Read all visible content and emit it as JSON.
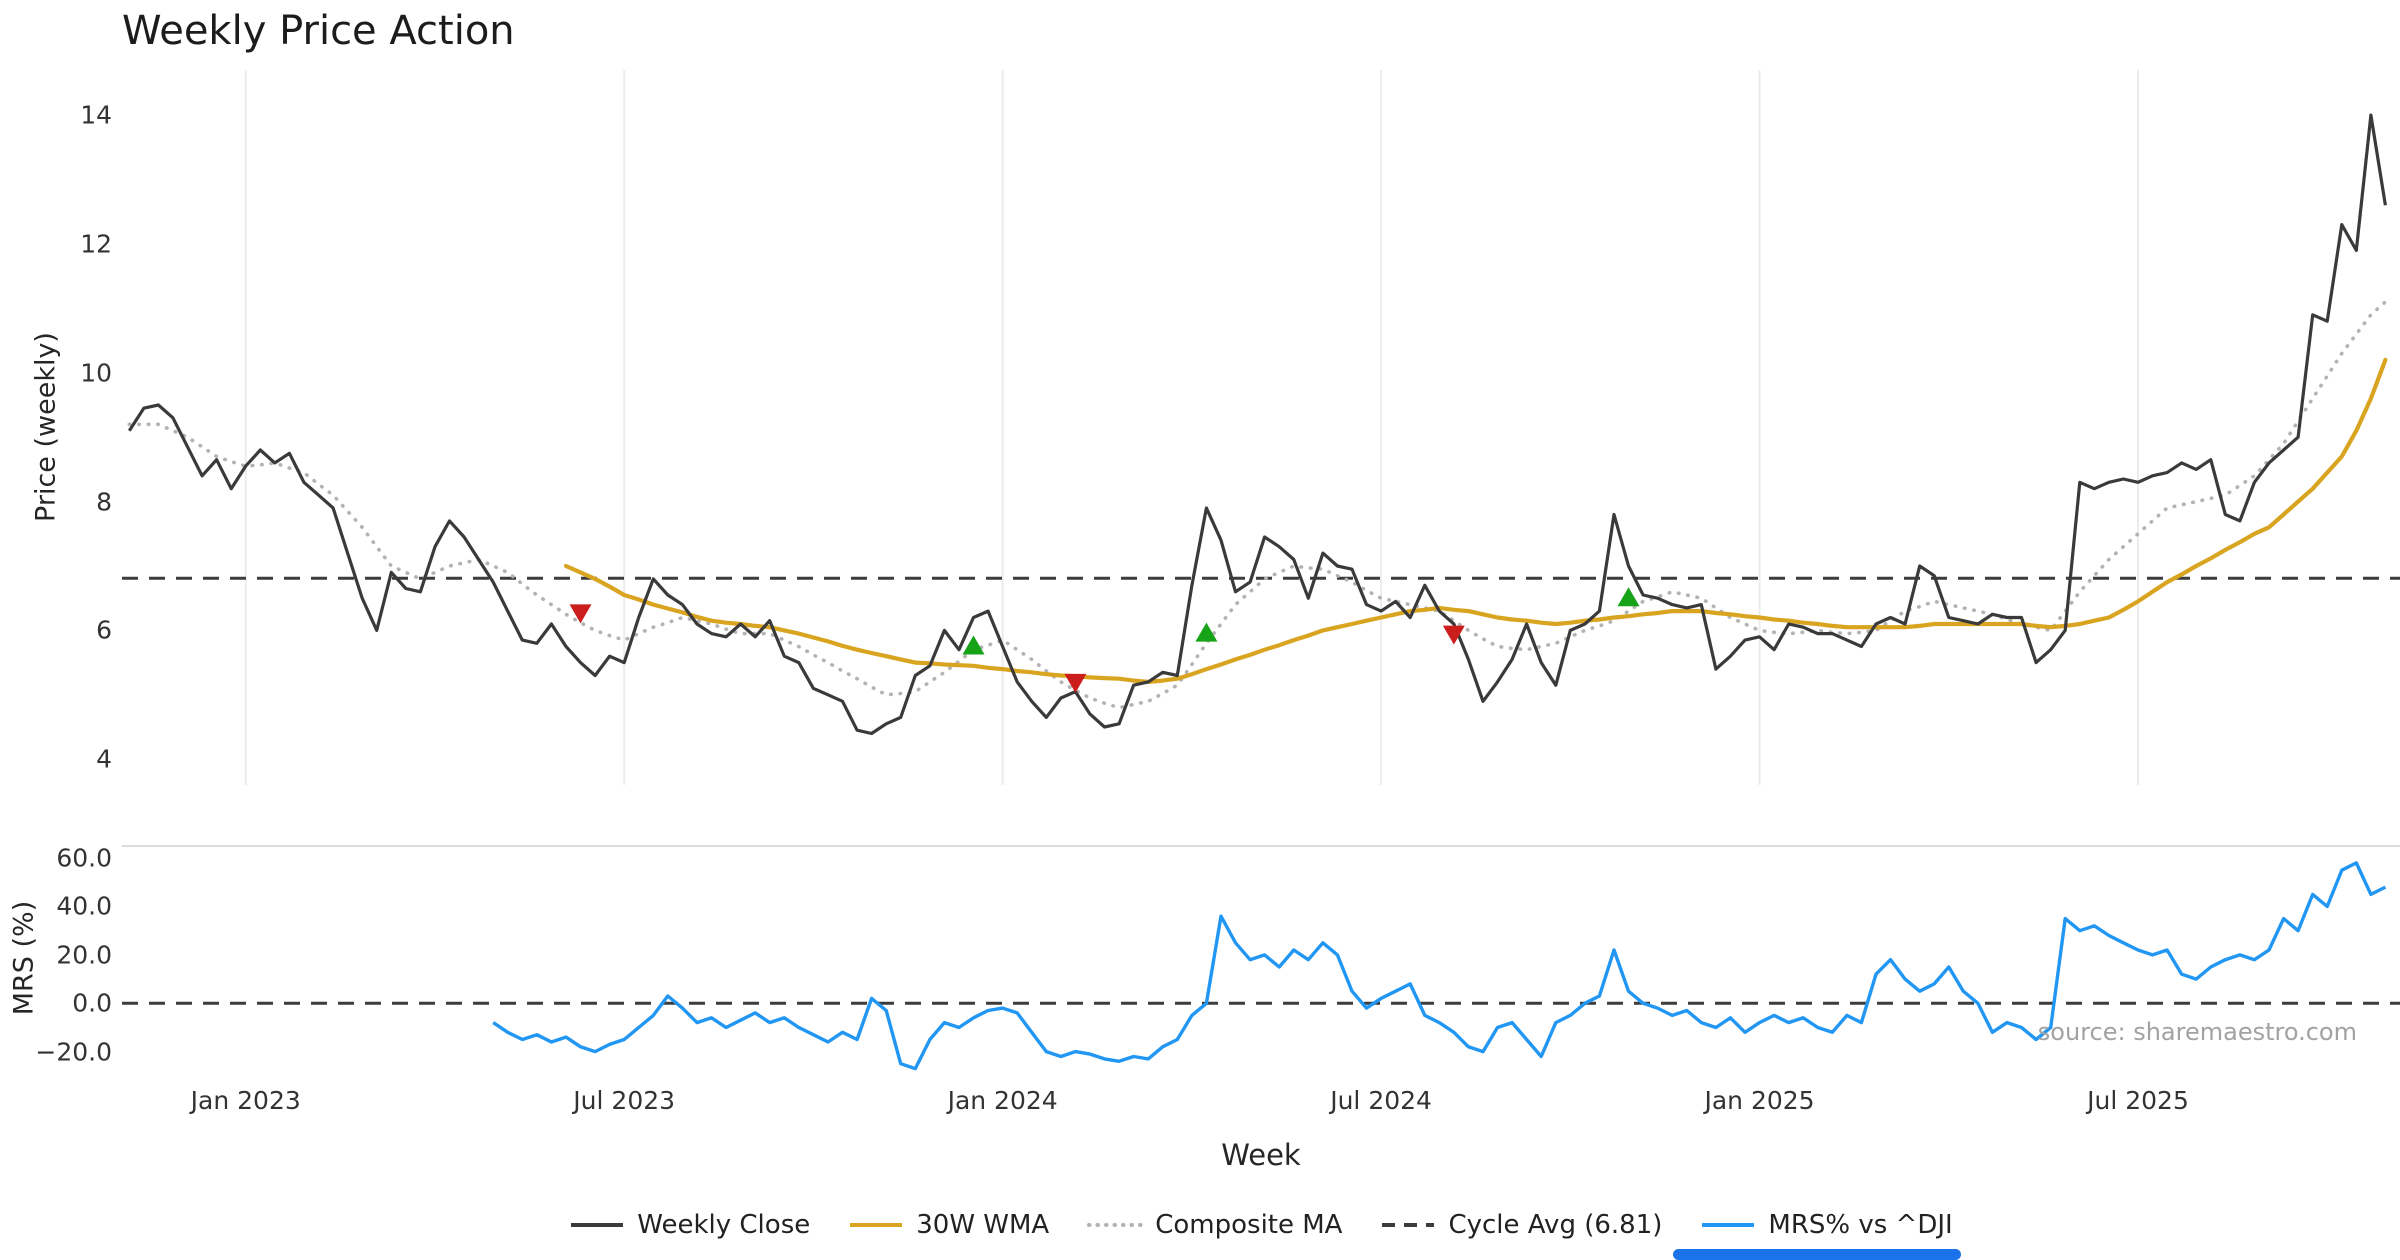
{
  "title": "Weekly Price Action",
  "source": "source: sharemaestro.com",
  "colors": {
    "weekly_close": "#3a3a3a",
    "wma": "#d9a420",
    "composite": "#b3b3b3",
    "cycle": "#3c3c3c",
    "mrs": "#2196f3",
    "buy": "#17a317",
    "sell": "#cc1d1d",
    "grid": "#ececec",
    "spine": "#dcdcdc",
    "scrollbar": "#1a73e8"
  },
  "legend": {
    "items": [
      {
        "label": "Weekly Close",
        "color": "#3a3a3a",
        "style": "solid"
      },
      {
        "label": "30W WMA",
        "color": "#d9a420",
        "style": "solid"
      },
      {
        "label": "Composite MA",
        "color": "#b3b3b3",
        "style": "dotted"
      },
      {
        "label": "Cycle Avg (6.81)",
        "color": "#3c3c3c",
        "style": "dashed"
      },
      {
        "label": "MRS% vs ^DJI",
        "color": "#2196f3",
        "style": "solid"
      }
    ]
  },
  "chart_data": {
    "type": "line",
    "title": "Weekly Price Action",
    "grid": "vertical-only",
    "legend_position": "bottom-center",
    "weeks_range": [
      -0.5,
      156
    ],
    "cycle_avg": 6.81,
    "x_axis": {
      "label": "Week",
      "ticks": [
        {
          "week": 8,
          "label": "Jan 2023"
        },
        {
          "week": 34,
          "label": "Jul 2023"
        },
        {
          "week": 60,
          "label": "Jan 2024"
        },
        {
          "week": 86,
          "label": "Jul 2024"
        },
        {
          "week": 112,
          "label": "Jan 2025"
        },
        {
          "week": 138,
          "label": "Jul 2025"
        }
      ]
    },
    "panels": [
      {
        "name": "price",
        "ylabel": "Price (weekly)",
        "ylim": [
          3.6,
          14.7
        ],
        "yticks": [
          {
            "v": 4,
            "label": "4"
          },
          {
            "v": 6,
            "label": "6"
          },
          {
            "v": 8,
            "label": "8"
          },
          {
            "v": 10,
            "label": "10"
          },
          {
            "v": 12,
            "label": "12"
          },
          {
            "v": 14,
            "label": "14"
          }
        ]
      },
      {
        "name": "mrs",
        "ylabel": "MRS (%)",
        "ylim": [
          -28,
          65
        ],
        "yticks": [
          {
            "v": -20,
            "label": "−20.0"
          },
          {
            "v": 0,
            "label": "0.0"
          },
          {
            "v": 20,
            "label": "20.0"
          },
          {
            "v": 40,
            "label": "40.0"
          },
          {
            "v": 60,
            "label": "60.0"
          }
        ]
      }
    ],
    "series": {
      "weekly_close": {
        "name": "Weekly Close",
        "start_week": 0,
        "values": [
          9.1,
          9.45,
          9.5,
          9.3,
          8.85,
          8.4,
          8.65,
          8.2,
          8.55,
          8.8,
          8.6,
          8.75,
          8.3,
          8.1,
          7.9,
          7.2,
          6.5,
          6.0,
          6.9,
          6.65,
          6.6,
          7.3,
          7.7,
          7.45,
          7.1,
          6.75,
          6.3,
          5.85,
          5.8,
          6.1,
          5.75,
          5.5,
          5.3,
          5.6,
          5.5,
          6.2,
          6.8,
          6.55,
          6.4,
          6.1,
          5.95,
          5.9,
          6.1,
          5.9,
          6.15,
          5.6,
          5.5,
          5.1,
          5.0,
          4.9,
          4.45,
          4.4,
          4.55,
          4.65,
          5.3,
          5.45,
          6.0,
          5.7,
          6.2,
          6.3,
          5.75,
          5.2,
          4.9,
          4.65,
          4.95,
          5.05,
          4.7,
          4.5,
          4.55,
          5.15,
          5.2,
          5.35,
          5.3,
          6.7,
          7.9,
          7.4,
          6.6,
          6.75,
          7.45,
          7.3,
          7.1,
          6.5,
          7.2,
          7.0,
          6.95,
          6.4,
          6.3,
          6.45,
          6.2,
          6.7,
          6.3,
          6.1,
          5.55,
          4.9,
          5.2,
          5.55,
          6.1,
          5.5,
          5.15,
          6.0,
          6.1,
          6.3,
          7.8,
          7.0,
          6.55,
          6.5,
          6.4,
          6.35,
          6.4,
          5.4,
          5.6,
          5.85,
          5.9,
          5.7,
          6.1,
          6.05,
          5.95,
          5.95,
          5.85,
          5.75,
          6.1,
          6.2,
          6.1,
          7.0,
          6.85,
          6.2,
          6.15,
          6.1,
          6.25,
          6.2,
          6.2,
          5.5,
          5.7,
          6.0,
          8.3,
          8.2,
          8.3,
          8.35,
          8.3,
          8.4,
          8.45,
          8.6,
          8.5,
          8.65,
          7.8,
          7.7,
          8.3,
          8.6,
          8.8,
          9.0,
          10.9,
          10.8,
          12.3,
          11.9,
          14.0,
          12.6
        ]
      },
      "wma_30w": {
        "name": "30W WMA",
        "start_week": 30,
        "values": [
          7.0,
          6.9,
          6.8,
          6.68,
          6.55,
          6.48,
          6.4,
          6.34,
          6.28,
          6.21,
          6.15,
          6.12,
          6.1,
          6.07,
          6.05,
          6.0,
          5.95,
          5.89,
          5.83,
          5.76,
          5.7,
          5.65,
          5.6,
          5.55,
          5.5,
          5.49,
          5.47,
          5.46,
          5.45,
          5.42,
          5.4,
          5.37,
          5.35,
          5.32,
          5.3,
          5.29,
          5.27,
          5.26,
          5.25,
          5.22,
          5.2,
          5.22,
          5.25,
          5.32,
          5.4,
          5.47,
          5.55,
          5.62,
          5.7,
          5.77,
          5.85,
          5.92,
          6.0,
          6.05,
          6.1,
          6.15,
          6.2,
          6.25,
          6.3,
          6.32,
          6.35,
          6.32,
          6.3,
          6.25,
          6.2,
          6.17,
          6.15,
          6.12,
          6.1,
          6.12,
          6.15,
          6.17,
          6.2,
          6.22,
          6.25,
          6.27,
          6.3,
          6.3,
          6.3,
          6.27,
          6.25,
          6.22,
          6.2,
          6.17,
          6.15,
          6.12,
          6.1,
          6.07,
          6.05,
          6.05,
          6.05,
          6.05,
          6.05,
          6.07,
          6.1,
          6.1,
          6.1,
          6.1,
          6.1,
          6.1,
          6.1,
          6.07,
          6.05,
          6.07,
          6.1,
          6.15,
          6.2,
          6.32,
          6.45,
          6.6,
          6.75,
          6.87,
          7.0,
          7.12,
          7.25,
          7.37,
          7.5,
          7.6,
          7.8,
          8.0,
          8.2,
          8.45,
          8.7,
          9.1,
          9.6,
          10.2
        ]
      },
      "composite_ma": {
        "name": "Composite MA",
        "start_week": 0,
        "values": [
          9.2,
          9.2,
          9.2,
          9.1,
          9.0,
          8.85,
          8.7,
          8.62,
          8.55,
          8.57,
          8.6,
          8.52,
          8.45,
          8.27,
          8.1,
          7.85,
          7.6,
          7.3,
          7.0,
          6.9,
          6.8,
          6.9,
          7.0,
          7.05,
          7.1,
          7.0,
          6.9,
          6.72,
          6.55,
          6.4,
          6.25,
          6.12,
          6.0,
          5.92,
          5.85,
          5.95,
          6.05,
          6.12,
          6.2,
          6.15,
          6.1,
          6.02,
          5.95,
          5.95,
          5.95,
          5.85,
          5.75,
          5.62,
          5.5,
          5.37,
          5.25,
          5.12,
          5.0,
          5.02,
          5.05,
          5.2,
          5.35,
          5.52,
          5.7,
          5.77,
          5.85,
          5.7,
          5.55,
          5.37,
          5.2,
          5.07,
          4.95,
          4.87,
          4.8,
          4.85,
          4.9,
          5.02,
          5.15,
          5.47,
          5.8,
          6.1,
          6.4,
          6.6,
          6.8,
          6.9,
          7.0,
          6.97,
          6.95,
          6.85,
          6.75,
          6.62,
          6.5,
          6.45,
          6.4,
          6.35,
          6.3,
          6.15,
          6.0,
          5.87,
          5.75,
          5.72,
          5.7,
          5.75,
          5.8,
          5.9,
          6.0,
          6.07,
          6.15,
          6.3,
          6.45,
          6.52,
          6.6,
          6.55,
          6.5,
          6.35,
          6.2,
          6.1,
          6.0,
          5.97,
          5.95,
          5.97,
          6.0,
          5.97,
          5.95,
          5.97,
          6.0,
          6.15,
          6.3,
          6.37,
          6.45,
          6.4,
          6.35,
          6.3,
          6.25,
          6.17,
          6.1,
          6.05,
          6.0,
          6.3,
          6.6,
          6.85,
          7.1,
          7.3,
          7.5,
          7.7,
          7.9,
          7.95,
          8.0,
          8.05,
          8.1,
          8.25,
          8.4,
          8.65,
          8.9,
          9.25,
          9.6,
          9.95,
          10.3,
          10.6,
          10.9,
          11.1
        ]
      },
      "mrs_pct": {
        "name": "MRS% vs ^DJI",
        "start_week": 25,
        "values": [
          -8,
          -12,
          -15,
          -13,
          -16,
          -14,
          -18,
          -20,
          -17,
          -15,
          -10,
          -5,
          3,
          -2,
          -8,
          -6,
          -10,
          -7,
          -4,
          -8,
          -6,
          -10,
          -13,
          -16,
          -12,
          -15,
          2,
          -3,
          -25,
          -27,
          -15,
          -8,
          -10,
          -6,
          -3,
          -2,
          -4,
          -12,
          -20,
          -22,
          -20,
          -21,
          -23,
          -24,
          -22,
          -23,
          -18,
          -15,
          -5,
          0,
          36,
          25,
          18,
          20,
          15,
          22,
          18,
          25,
          20,
          5,
          -2,
          2,
          5,
          8,
          -5,
          -8,
          -12,
          -18,
          -20,
          -10,
          -8,
          -15,
          -22,
          -8,
          -5,
          0,
          3,
          22,
          5,
          0,
          -2,
          -5,
          -3,
          -8,
          -10,
          -6,
          -12,
          -8,
          -5,
          -8,
          -6,
          -10,
          -12,
          -5,
          -8,
          12,
          18,
          10,
          5,
          8,
          15,
          5,
          0,
          -12,
          -8,
          -10,
          -15,
          -10,
          35,
          30,
          32,
          28,
          25,
          22,
          20,
          22,
          12,
          10,
          15,
          18,
          20,
          18,
          22,
          35,
          30,
          45,
          40,
          55,
          58,
          45,
          48
        ]
      }
    },
    "signals": [
      {
        "week": 31,
        "value": 6.28,
        "type": "sell"
      },
      {
        "week": 58,
        "value": 5.75,
        "type": "buy"
      },
      {
        "week": 65,
        "value": 5.2,
        "type": "sell"
      },
      {
        "week": 74,
        "value": 5.95,
        "type": "buy"
      },
      {
        "week": 91,
        "value": 5.95,
        "type": "sell"
      },
      {
        "week": 103,
        "value": 6.5,
        "type": "buy"
      }
    ]
  }
}
